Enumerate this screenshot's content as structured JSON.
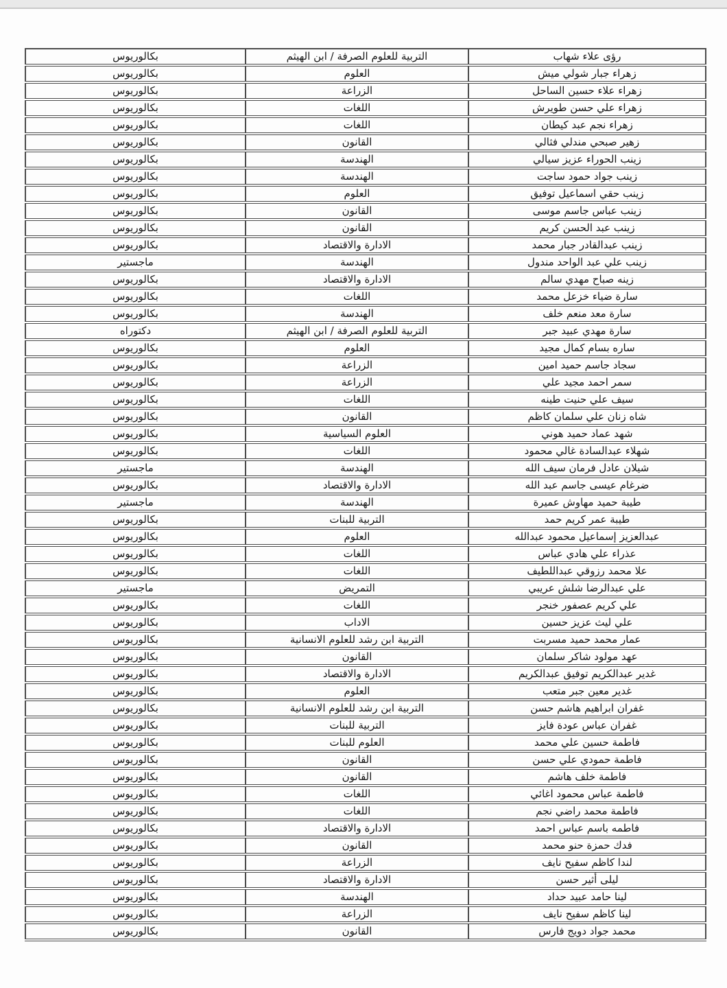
{
  "page": {
    "top_bar_color": "#e9e9e9",
    "background": "#fdfdfd",
    "border_color": "#4a4a4a",
    "text_color": "#161616",
    "direction": "rtl"
  },
  "table": {
    "column_keys": [
      "name",
      "college",
      "degree"
    ],
    "rows": [
      {
        "name": "رؤى علاء شهاب",
        "college": "التربية للعلوم الصرفة / ابن الهيثم",
        "degree": "بكالوريوس"
      },
      {
        "name": "زهراء جبار شولي ميش",
        "college": "العلوم",
        "degree": "بكالوريوس"
      },
      {
        "name": "زهراء علاء حسين الساحل",
        "college": "الزراعة",
        "degree": "بكالوريوس"
      },
      {
        "name": "زهراء علي حسن طويرش",
        "college": "اللغات",
        "degree": "بكالوريوس"
      },
      {
        "name": "زهراء نجم عبد كيطان",
        "college": "اللغات",
        "degree": "بكالوريوس"
      },
      {
        "name": "زهير صبحي مندلي فثالي",
        "college": "القانون",
        "degree": "بكالوريوس"
      },
      {
        "name": "زينب الحوراء عزيز سيالي",
        "college": "الهندسة",
        "degree": "بكالوريوس"
      },
      {
        "name": "زينب جواد حمود ساجت",
        "college": "الهندسة",
        "degree": "بكالوريوس"
      },
      {
        "name": "زينب حقي اسماعيل توفيق",
        "college": "العلوم",
        "degree": "بكالوريوس"
      },
      {
        "name": "زينب عباس جاسم موسى",
        "college": "القانون",
        "degree": "بكالوريوس"
      },
      {
        "name": "زينب عبد الحسن كريم",
        "college": "القانون",
        "degree": "بكالوريوس"
      },
      {
        "name": "زينب عبدالقادر جبار محمد",
        "college": "الادارة والاقتصاد",
        "degree": "بكالوريوس"
      },
      {
        "name": "زينب علي عبد الواحد مندول",
        "college": "الهندسة",
        "degree": "ماجستير"
      },
      {
        "name": "زينه صباح مهدي سالم",
        "college": "الادارة والاقتصاد",
        "degree": "بكالوريوس"
      },
      {
        "name": "سارة ضياء خزعل محمد",
        "college": "اللغات",
        "degree": "بكالوريوس"
      },
      {
        "name": "سارة معد منعم خلف",
        "college": "الهندسة",
        "degree": "بكالوريوس"
      },
      {
        "name": "سارة مهدي عبيد جبر",
        "college": "التربية للعلوم الصرفة / ابن الهيثم",
        "degree": "دكتوراه"
      },
      {
        "name": "ساره بسام كمال مجيد",
        "college": "العلوم",
        "degree": "بكالوريوس"
      },
      {
        "name": "سجاد جاسم حميد امين",
        "college": "الزراعة",
        "degree": "بكالوريوس"
      },
      {
        "name": "سمر احمد مجيد علي",
        "college": "الزراعة",
        "degree": "بكالوريوس"
      },
      {
        "name": "سيف علي حنيت طينه",
        "college": "اللغات",
        "degree": "بكالوريوس"
      },
      {
        "name": "شاه زنان علي سلمان كاظم",
        "college": "القانون",
        "degree": "بكالوريوس"
      },
      {
        "name": "شهد عماد حميد هوني",
        "college": "العلوم السياسية",
        "degree": "بكالوريوس"
      },
      {
        "name": "شهلاء عبدالسادة غالي محمود",
        "college": "اللغات",
        "degree": "بكالوريوس"
      },
      {
        "name": "شيلان عادل فرمان سيف الله",
        "college": "الهندسة",
        "degree": "ماجستير"
      },
      {
        "name": "ضرغام عيسى جاسم عبد الله",
        "college": "الادارة والاقتصاد",
        "degree": "بكالوريوس"
      },
      {
        "name": "طيبة حميد مهاوش عميرة",
        "college": "الهندسة",
        "degree": "ماجستير"
      },
      {
        "name": "طيبة عمر كريم حمد",
        "college": "التربية للبنات",
        "degree": "بكالوريوس"
      },
      {
        "name": "عبدالعزيز إسماعيل محمود عبدالله",
        "college": "العلوم",
        "degree": "بكالوريوس"
      },
      {
        "name": "عذراء علي هادي عباس",
        "college": "اللغات",
        "degree": "بكالوريوس"
      },
      {
        "name": "علا محمد رزوقي عبداللطيف",
        "college": "اللغات",
        "degree": "بكالوريوس"
      },
      {
        "name": "علي عبدالرضا شلش عريبي",
        "college": "التمريض",
        "degree": "ماجستير"
      },
      {
        "name": "علي كريم عصفور خنجر",
        "college": "اللغات",
        "degree": "بكالوريوس"
      },
      {
        "name": "علي ليث عزيز حسين",
        "college": "الاداب",
        "degree": "بكالوريوس"
      },
      {
        "name": "عمار محمد حميد مسربت",
        "college": "التربية ابن رشد للعلوم الانسانية",
        "degree": "بكالوريوس"
      },
      {
        "name": "عهد مولود شاكر سلمان",
        "college": "القانون",
        "degree": "بكالوريوس"
      },
      {
        "name": "غدير عبدالكريم توفيق عبدالكريم",
        "college": "الادارة والاقتصاد",
        "degree": "بكالوريوس"
      },
      {
        "name": "غدير معين جبر متعب",
        "college": "العلوم",
        "degree": "بكالوريوس"
      },
      {
        "name": "غفران ابراهيم هاشم حسن",
        "college": "التربية ابن رشد للعلوم الانسانية",
        "degree": "بكالوريوس"
      },
      {
        "name": "غفران عباس عودة فايز",
        "college": "التربية للبنات",
        "degree": "بكالوريوس"
      },
      {
        "name": "فاطمة حسين علي محمد",
        "college": "العلوم للبنات",
        "degree": "بكالوريوس"
      },
      {
        "name": "فاطمة حمودي علي حسن",
        "college": "القانون",
        "degree": "بكالوريوس"
      },
      {
        "name": "فاطمة خلف هاشم",
        "college": "القانون",
        "degree": "بكالوريوس"
      },
      {
        "name": "فاطمة عباس محمود اغائي",
        "college": "اللغات",
        "degree": "بكالوريوس"
      },
      {
        "name": "فاطمة محمد راضي نجم",
        "college": "اللغات",
        "degree": "بكالوريوس"
      },
      {
        "name": "فاطمه باسم عباس احمد",
        "college": "الادارة والاقتصاد",
        "degree": "بكالوريوس"
      },
      {
        "name": "فدك حمزة حنو محمد",
        "college": "القانون",
        "degree": "بكالوريوس"
      },
      {
        "name": "لندا كاظم سفيح نايف",
        "college": "الزراعة",
        "degree": "بكالوريوس"
      },
      {
        "name": "ليلى أثير حسن",
        "college": "الادارة والاقتصاد",
        "degree": "بكالوريوس"
      },
      {
        "name": "لينا حامد عبيد حداد",
        "college": "الهندسة",
        "degree": "بكالوريوس"
      },
      {
        "name": "لينا كاظم سفيح نايف",
        "college": "الزراعة",
        "degree": "بكالوريوس"
      },
      {
        "name": "محمد جواد دويج فارس",
        "college": "القانون",
        "degree": "بكالوريوس"
      }
    ]
  }
}
